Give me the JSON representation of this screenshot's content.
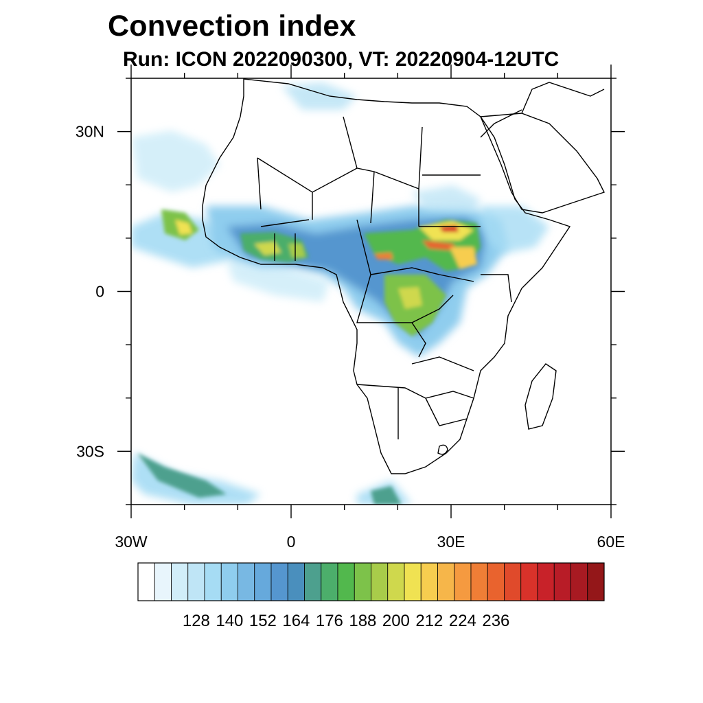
{
  "title": "Convection index",
  "subtitle": "Run: ICON 2022090300,  VT: 20220904-12UTC",
  "map": {
    "projection": "cylindrical-equidistant",
    "lon_range": [
      -30,
      60
    ],
    "lat_range": [
      -40,
      40
    ],
    "lat_ticks": [
      {
        "value": 30,
        "label": "30N"
      },
      {
        "value": 0,
        "label": "0"
      },
      {
        "value": -30,
        "label": "30S"
      }
    ],
    "lon_ticks": [
      {
        "value": -30,
        "label": "30W"
      },
      {
        "value": 0,
        "label": "0"
      },
      {
        "value": 30,
        "label": "30E"
      },
      {
        "value": 60,
        "label": "60E"
      }
    ],
    "coastline_color": "#000000",
    "ocean_color": "#ffffff"
  },
  "colorbar": {
    "colors": [
      "#ffffff",
      "#e8f5fc",
      "#d1eef9",
      "#bfe5f6",
      "#a6dcf4",
      "#8fcdee",
      "#78b8e3",
      "#66a9dc",
      "#5596cf",
      "#4a8fbd",
      "#4da08e",
      "#4cae6b",
      "#52b84d",
      "#7dc24a",
      "#a8cc4a",
      "#cfd84d",
      "#f0e252",
      "#f7cd4f",
      "#f6b64a",
      "#f59a40",
      "#ef7e36",
      "#e9632e",
      "#e04a2b",
      "#d9322a",
      "#c82229",
      "#b81c27",
      "#a81a22",
      "#941719"
    ],
    "labels": [
      "128",
      "140",
      "152",
      "164",
      "176",
      "188",
      "200",
      "212",
      "224",
      "236"
    ],
    "label_positions": [
      2,
      4,
      6,
      8,
      10,
      12,
      14,
      16,
      18,
      20
    ]
  }
}
